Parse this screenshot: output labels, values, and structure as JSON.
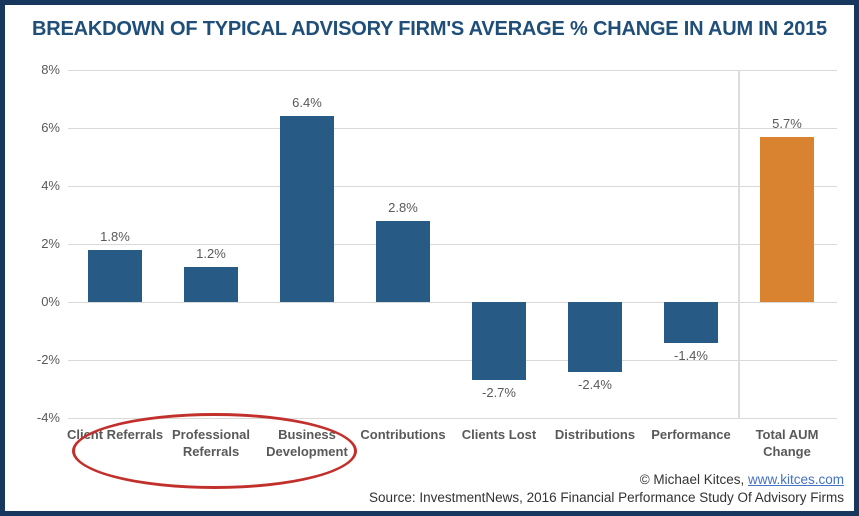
{
  "title": "BREAKDOWN OF TYPICAL ADVISORY FIRM'S AVERAGE % CHANGE IN AUM IN 2015",
  "chart_data": {
    "type": "bar",
    "title": "BREAKDOWN OF TYPICAL ADVISORY FIRM'S AVERAGE % CHANGE IN AUM IN 2015",
    "categories": [
      "Client Referrals",
      "Professional Referrals",
      "Business Development",
      "Contributions",
      "Clients Lost",
      "Distributions",
      "Performance",
      "Total AUM Change"
    ],
    "values": [
      1.8,
      1.2,
      6.4,
      2.8,
      -2.7,
      -2.4,
      -1.4,
      5.7
    ],
    "value_labels": [
      "1.8%",
      "1.2%",
      "6.4%",
      "2.8%",
      "-2.7%",
      "-2.4%",
      "-1.4%",
      "5.7%"
    ],
    "bar_colors": [
      "#275A84",
      "#275A84",
      "#275A84",
      "#275A84",
      "#275A84",
      "#275A84",
      "#275A84",
      "#D9822F"
    ],
    "ylim": [
      -4,
      8
    ],
    "yticks": [
      8,
      6,
      4,
      2,
      0,
      -2,
      -4
    ],
    "ytick_labels": [
      "8%",
      "6%",
      "4%",
      "2%",
      "0%",
      "-2%",
      "-4%"
    ],
    "grid": true,
    "legend": false,
    "separator_before_category": "Total AUM Change",
    "annotation": {
      "type": "ellipse",
      "color": "#C2302C",
      "around_categories": [
        "Client Referrals",
        "Professional Referrals",
        "Business Development"
      ]
    }
  },
  "colors": {
    "bar_blue": "#275A84",
    "bar_orange": "#D9822F",
    "title_navy": "#1F4E79",
    "border_navy": "#17375E",
    "gridline_gray": "#D9D9D9",
    "label_gray": "#595959",
    "ellipse_red": "#C2302C",
    "link_blue": "#4472C4"
  },
  "footer": {
    "credit_prefix": "© Michael Kitces, ",
    "credit_link": "www.kitces.com",
    "source": "Source: InvestmentNews, 2016 Financial Performance Study Of Advisory Firms"
  }
}
